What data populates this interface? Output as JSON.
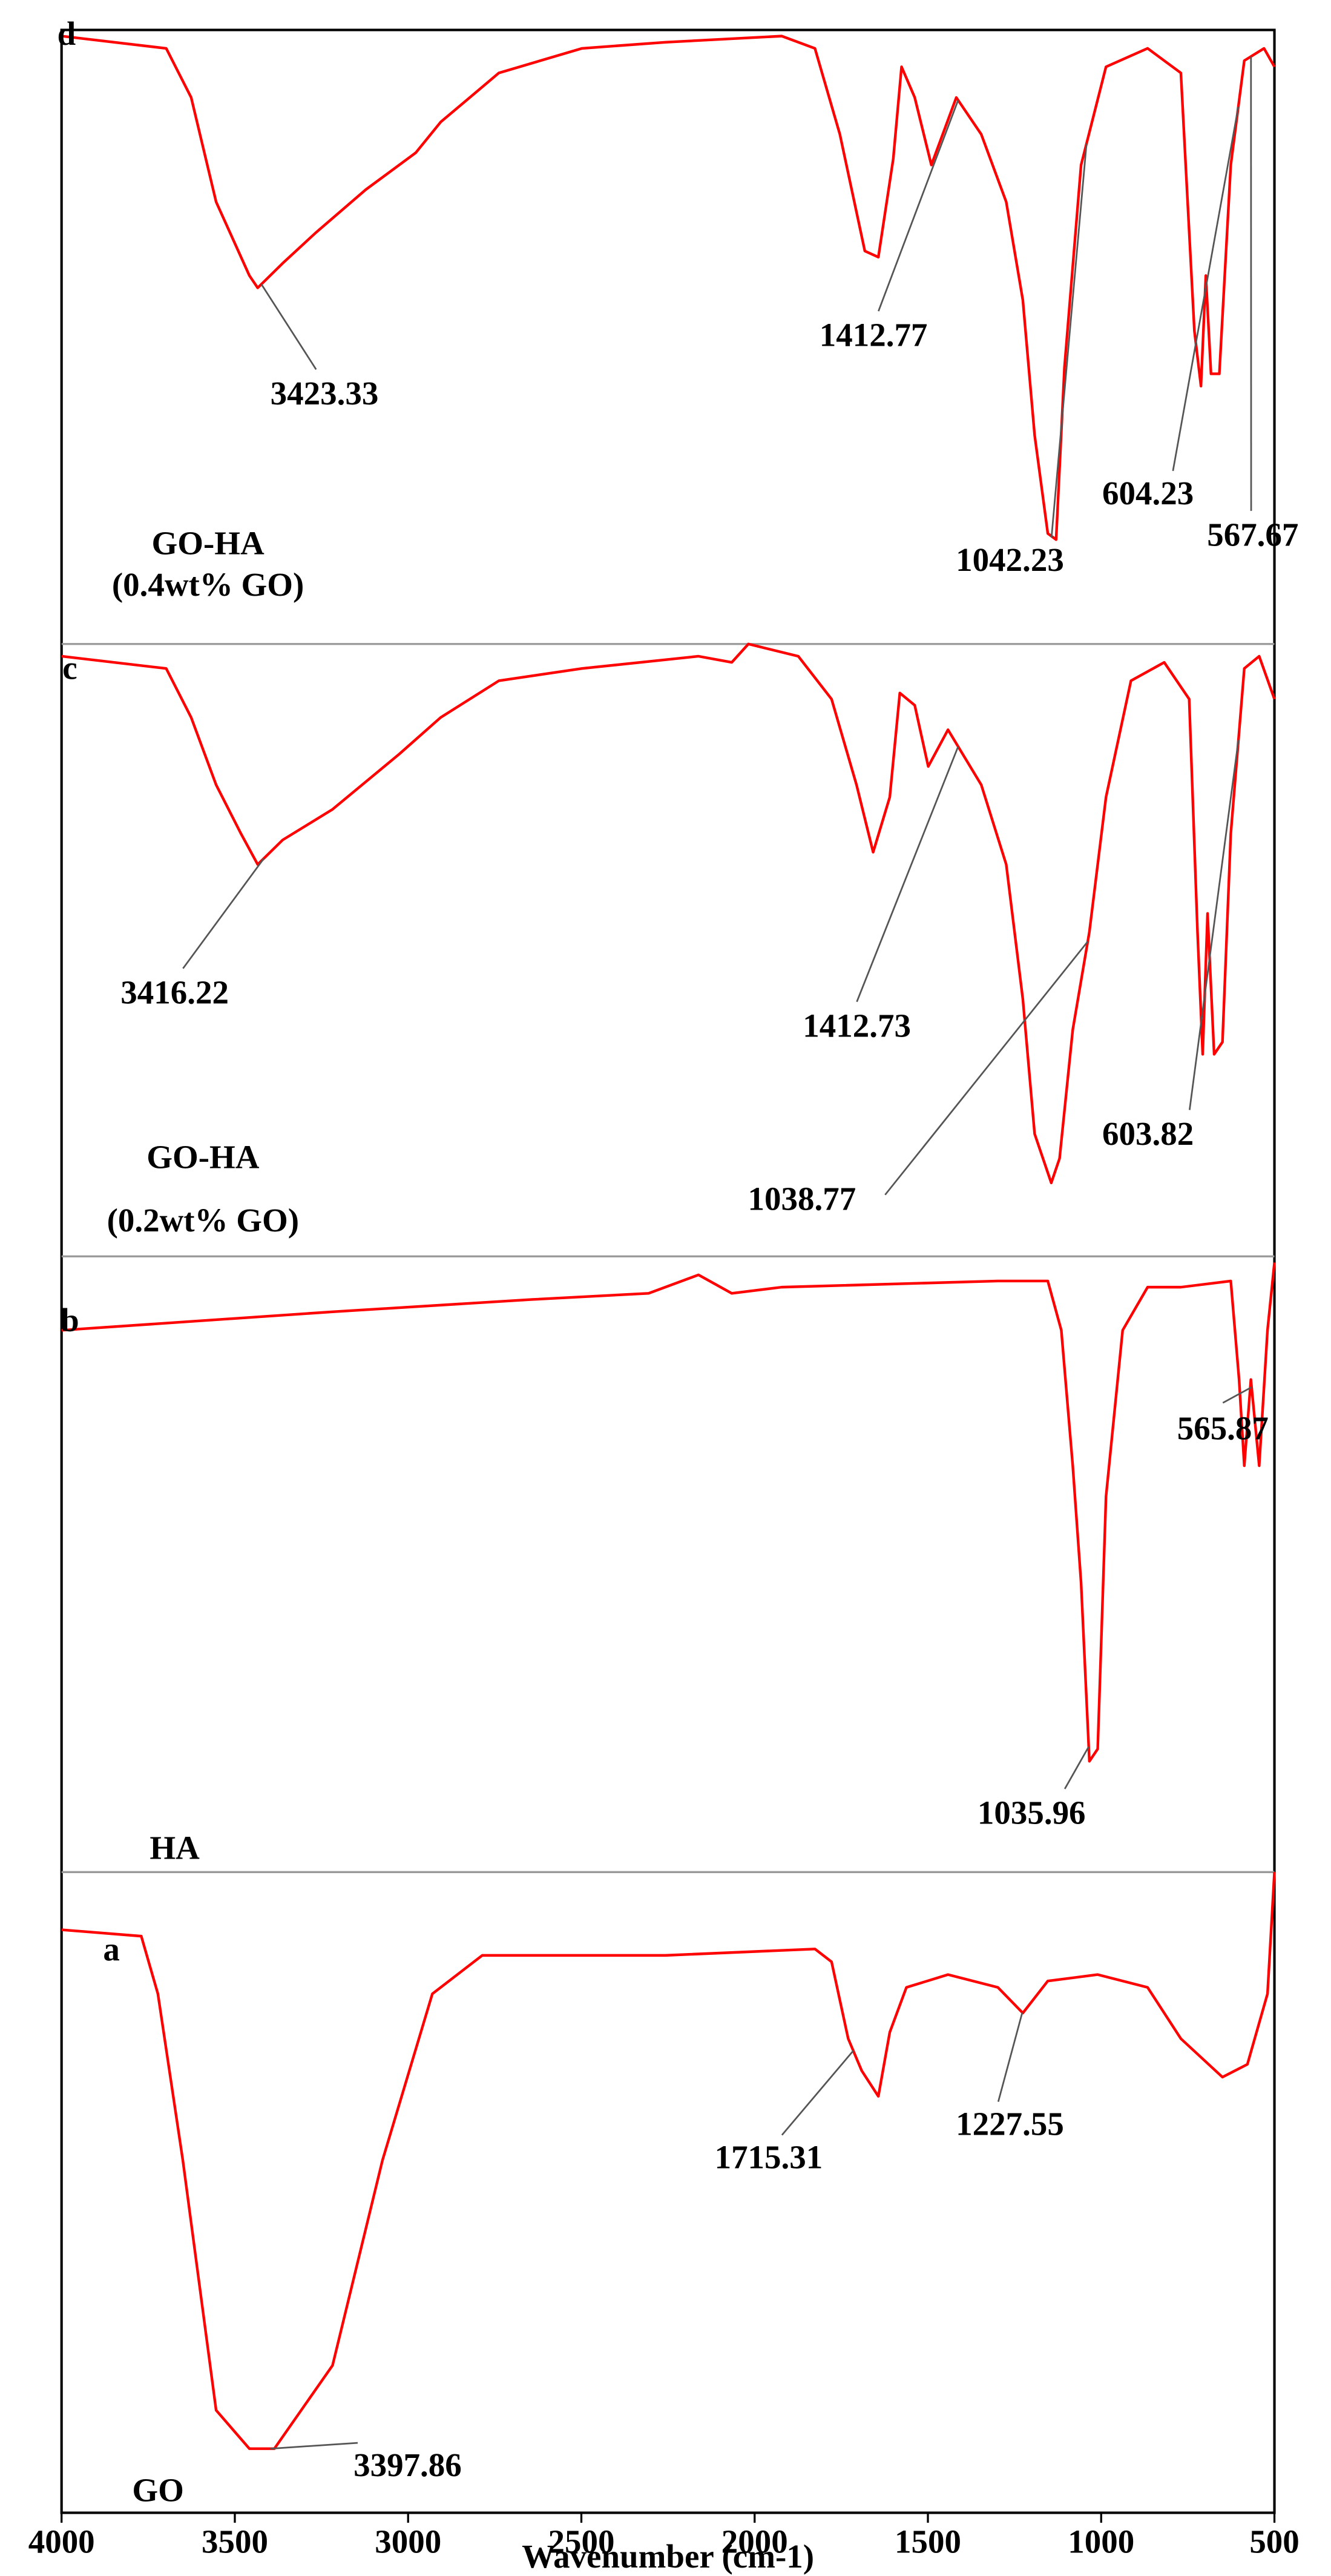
{
  "chart_data": [
    {
      "type": "line",
      "panel_label": "d",
      "sample": [
        "GO-HA",
        "(0.4wt% GO)"
      ],
      "color": "#ff0000",
      "xlim": [
        4000,
        500
      ],
      "ylim": [
        0,
        100
      ],
      "x": [
        4000,
        3698,
        3626,
        3554,
        3458,
        3434,
        3362,
        3266,
        3122,
        2978,
        2906,
        2738,
        2498,
        2258,
        1922,
        1826,
        1754,
        1682,
        1643,
        1600,
        1576,
        1538,
        1490,
        1418,
        1346,
        1274,
        1226,
        1192,
        1154,
        1130,
        1106,
        1058,
        986,
        866,
        770,
        731,
        712,
        698,
        683,
        659,
        626,
        587,
        530,
        500
      ],
      "values": [
        99,
        97,
        89,
        72,
        60,
        58,
        62,
        67,
        74,
        80,
        85,
        93,
        97,
        98,
        99,
        97,
        83,
        64,
        63,
        79,
        94,
        89,
        78,
        89,
        83,
        72,
        56,
        34,
        18,
        17,
        45,
        78,
        94,
        97,
        93,
        51,
        42,
        60,
        44,
        44,
        78,
        95,
        97,
        94
      ],
      "annotations": [
        3423.33,
        1412.77,
        1042.23,
        604.23,
        567.67
      ]
    },
    {
      "type": "line",
      "panel_label": "c",
      "sample": [
        "GO-HA",
        "(0.2wt% GO)"
      ],
      "color": "#ff0000",
      "xlim": [
        4000,
        500
      ],
      "ylim": [
        0,
        100
      ],
      "x": [
        4000,
        3698,
        3626,
        3554,
        3482,
        3434,
        3362,
        3218,
        3026,
        2906,
        2738,
        2498,
        2162,
        2066,
        2018,
        1874,
        1778,
        1706,
        1658,
        1610,
        1581,
        1538,
        1499,
        1442,
        1346,
        1274,
        1226,
        1192,
        1144,
        1120,
        1082,
        1034,
        986,
        914,
        818,
        746,
        722,
        707,
        693,
        674,
        650,
        626,
        587,
        544,
        500
      ],
      "values": [
        98,
        96,
        88,
        77,
        69,
        64,
        68,
        73,
        82,
        88,
        94,
        96,
        98,
        97,
        100,
        98,
        91,
        77,
        66,
        75,
        92,
        90,
        80,
        86,
        77,
        64,
        42,
        20,
        12,
        16,
        37,
        53,
        75,
        94,
        97,
        91,
        53,
        33,
        56,
        33,
        35,
        69,
        96,
        98,
        91
      ],
      "annotations": [
        3416.22,
        1412.73,
        1038.77,
        603.82
      ]
    },
    {
      "type": "line",
      "panel_label": "b",
      "sample": [
        "HA"
      ],
      "color": "#ff0000",
      "xlim": [
        4000,
        500
      ],
      "ylim": [
        0,
        100
      ],
      "x": [
        4000,
        3218,
        2642,
        2306,
        2162,
        2066,
        1922,
        1298,
        1154,
        1115,
        1082,
        1058,
        1034,
        1010,
        986,
        938,
        866,
        770,
        626,
        602,
        587,
        568,
        544,
        520,
        500
      ],
      "values": [
        88,
        91,
        93,
        94,
        97,
        94,
        95,
        96,
        96,
        88,
        66,
        47,
        18,
        20,
        61,
        88,
        95,
        95,
        96,
        80,
        66,
        80,
        66,
        88,
        99
      ],
      "annotations": [
        565.87,
        1035.96
      ]
    },
    {
      "type": "line",
      "panel_label": "a",
      "sample": [
        "GO"
      ],
      "color": "#ff0000",
      "xlim": [
        4000,
        500
      ],
      "ylim": [
        0,
        100
      ],
      "xticks": [
        4000,
        3500,
        3000,
        2500,
        2000,
        1500,
        1000,
        500
      ],
      "x_label": "Wavenumber (cm-1)",
      "x": [
        4000,
        3770,
        3722,
        3650,
        3554,
        3458,
        3386,
        3218,
        3074,
        2930,
        2786,
        2594,
        2258,
        1826,
        1778,
        1730,
        1691,
        1643,
        1610,
        1562,
        1442,
        1298,
        1226,
        1154,
        1010,
        866,
        770,
        650,
        578,
        520,
        500
      ],
      "values": [
        91,
        90,
        81,
        55,
        16,
        10,
        10,
        23,
        55,
        81,
        87,
        87,
        87,
        88,
        86,
        74,
        69,
        65,
        75,
        82,
        84,
        82,
        78,
        83,
        84,
        82,
        74,
        68,
        70,
        81,
        100
      ],
      "annotations": [
        1715.31,
        1227.55,
        3397.86
      ]
    }
  ]
}
